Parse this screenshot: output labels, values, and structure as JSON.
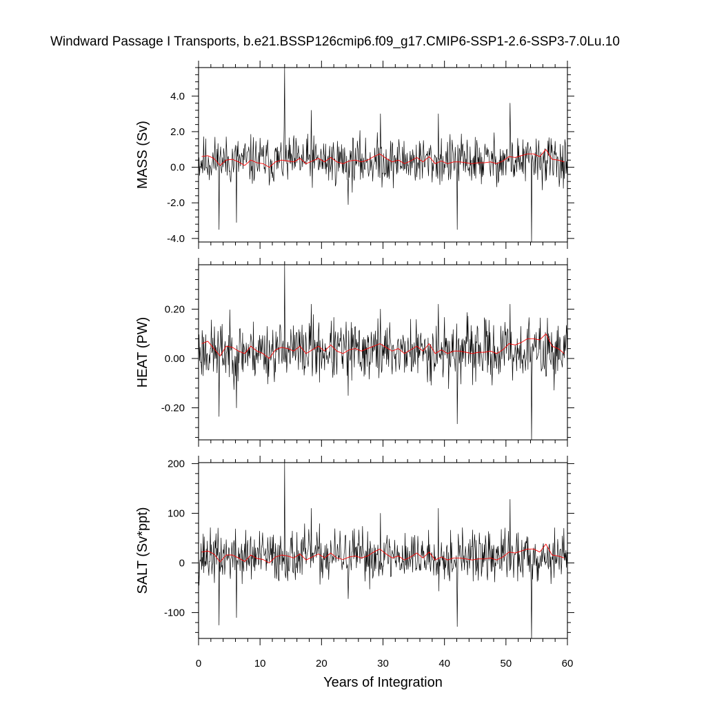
{
  "figure_title": "Windward Passage I Transports, b.e21.BSSP126cmip6.f09_g17.CMIP6-SSP1-2.6-SSP3-7.0Lu.10",
  "colors": {
    "monthly": "#000000",
    "annual": "#ff0000",
    "frame": "#000000"
  },
  "chart_data": [
    {
      "type": "line",
      "name": "mass",
      "xlabel": "",
      "ylabel": "MASS (Sv)",
      "xlim": [
        0,
        60
      ],
      "ylim": [
        -4.2,
        5.6
      ],
      "xticks": [
        0,
        10,
        20,
        30,
        40,
        50,
        60
      ],
      "yticks": [
        -4.0,
        -2.0,
        0.0,
        2.0,
        4.0
      ],
      "ytick_labels": [
        "-4.0",
        "-2.0",
        "0.0",
        "2.0",
        "4.0"
      ],
      "series": [
        {
          "name": "",
          "style": "monthly",
          "mean": 0.35,
          "amp": 0.85,
          "seed": 11,
          "spikes": [
            [
              3.3,
              -3.5
            ],
            [
              6.2,
              -3.1
            ],
            [
              14.0,
              5.6
            ],
            [
              18.3,
              3.2
            ],
            [
              24.3,
              -2.1
            ],
            [
              29.6,
              3.0
            ],
            [
              39.0,
              3.0
            ],
            [
              42.1,
              -3.5
            ],
            [
              50.7,
              3.6
            ],
            [
              54.2,
              -4.2
            ]
          ]
        },
        {
          "name": "",
          "style": "annual",
          "x": [
            0.5,
            1.5,
            2.5,
            3.5,
            4.5,
            5.5,
            6.5,
            7.5,
            8.5,
            9.5,
            10.5,
            11.5,
            12.5,
            13.5,
            14.5,
            15.5,
            16.5,
            17.5,
            18.5,
            19.5,
            20.5,
            21.5,
            22.5,
            23.5,
            24.5,
            25.5,
            26.5,
            27.5,
            28.5,
            29.5,
            30.5,
            31.5,
            32.5,
            33.5,
            34.5,
            35.5,
            36.5,
            37.5,
            38.5,
            39.5,
            40.5,
            41.5,
            42.5,
            43.5,
            44.5,
            45.5,
            46.5,
            47.5,
            48.5,
            49.5,
            50.5,
            51.5,
            52.5,
            53.5,
            54.5,
            55.5,
            56.5,
            57.5,
            58.5,
            59.5
          ],
          "y": [
            0.6,
            0.65,
            0.5,
            0.1,
            0.4,
            0.45,
            0.3,
            0.1,
            0.4,
            0.25,
            0.2,
            0.0,
            0.3,
            0.4,
            0.35,
            0.3,
            0.5,
            0.2,
            0.35,
            0.5,
            0.3,
            0.55,
            0.3,
            0.2,
            0.35,
            0.4,
            0.3,
            0.4,
            0.6,
            0.75,
            0.5,
            0.3,
            0.4,
            0.2,
            0.35,
            0.55,
            0.3,
            0.6,
            0.2,
            0.35,
            0.2,
            0.3,
            0.3,
            0.25,
            0.2,
            0.25,
            0.25,
            0.3,
            0.2,
            0.35,
            0.6,
            0.55,
            0.65,
            0.75,
            0.75,
            0.6,
            1.0,
            0.45,
            0.4,
            0.3
          ]
        }
      ]
    },
    {
      "type": "line",
      "name": "heat",
      "xlabel": "",
      "ylabel": "HEAT (PW)",
      "xlim": [
        0,
        60
      ],
      "ylim": [
        -0.33,
        0.38
      ],
      "xticks": [
        0,
        10,
        20,
        30,
        40,
        50,
        60
      ],
      "yticks": [
        -0.2,
        0.0,
        0.2
      ],
      "ytick_labels": [
        "-0.20",
        "0.00",
        "0.20"
      ],
      "series": [
        {
          "name": "",
          "style": "monthly",
          "mean": 0.03,
          "amp": 0.075,
          "seed": 23,
          "spikes": [
            [
              3.3,
              -0.235
            ],
            [
              6.2,
              -0.2
            ],
            [
              14.0,
              0.38
            ],
            [
              18.3,
              0.22
            ],
            [
              24.3,
              -0.15
            ],
            [
              29.6,
              0.2
            ],
            [
              39.0,
              0.22
            ],
            [
              42.1,
              -0.265
            ],
            [
              50.7,
              0.22
            ],
            [
              54.2,
              -0.33
            ]
          ]
        },
        {
          "name": "",
          "style": "annual",
          "x": [
            0.5,
            1.5,
            2.5,
            3.5,
            4.5,
            5.5,
            6.5,
            7.5,
            8.5,
            9.5,
            10.5,
            11.5,
            12.5,
            13.5,
            14.5,
            15.5,
            16.5,
            17.5,
            18.5,
            19.5,
            20.5,
            21.5,
            22.5,
            23.5,
            24.5,
            25.5,
            26.5,
            27.5,
            28.5,
            29.5,
            30.5,
            31.5,
            32.5,
            33.5,
            34.5,
            35.5,
            36.5,
            37.5,
            38.5,
            39.5,
            40.5,
            41.5,
            42.5,
            43.5,
            44.5,
            45.5,
            46.5,
            47.5,
            48.5,
            49.5,
            50.5,
            51.5,
            52.5,
            53.5,
            54.5,
            55.5,
            56.5,
            57.5,
            58.5,
            59.5
          ],
          "y": [
            0.06,
            0.07,
            0.04,
            0.01,
            0.05,
            0.045,
            0.03,
            0.02,
            0.05,
            0.03,
            0.02,
            0.0,
            0.035,
            0.045,
            0.04,
            0.03,
            0.05,
            0.02,
            0.035,
            0.05,
            0.03,
            0.055,
            0.03,
            0.02,
            0.035,
            0.04,
            0.03,
            0.04,
            0.05,
            0.06,
            0.045,
            0.03,
            0.04,
            0.02,
            0.035,
            0.05,
            0.03,
            0.06,
            0.02,
            0.035,
            0.02,
            0.03,
            0.03,
            0.025,
            0.02,
            0.025,
            0.025,
            0.03,
            0.02,
            0.035,
            0.06,
            0.055,
            0.065,
            0.08,
            0.08,
            0.075,
            0.1,
            0.05,
            0.04,
            0.02
          ]
        }
      ]
    },
    {
      "type": "line",
      "name": "salt",
      "xlabel": "Years of Integration",
      "ylabel": "SALT (Sv*ppt)",
      "xlim": [
        0,
        60
      ],
      "ylim": [
        -152,
        202
      ],
      "xticks": [
        0,
        10,
        20,
        30,
        40,
        50,
        60
      ],
      "xtick_labels": [
        "0",
        "10",
        "20",
        "30",
        "40",
        "50",
        "60"
      ],
      "yticks": [
        -100,
        0,
        100,
        200
      ],
      "ytick_labels": [
        "-100",
        "0",
        "100",
        "200"
      ],
      "series": [
        {
          "name": "",
          "style": "monthly",
          "mean": 13,
          "amp": 32,
          "seed": 37,
          "spikes": [
            [
              3.3,
              -125
            ],
            [
              6.2,
              -110
            ],
            [
              14.0,
              202
            ],
            [
              18.3,
              110
            ],
            [
              24.3,
              -72
            ],
            [
              29.6,
              100
            ],
            [
              39.0,
              110
            ],
            [
              42.1,
              -128
            ],
            [
              50.7,
              128
            ],
            [
              54.2,
              -152
            ]
          ]
        },
        {
          "name": "",
          "style": "annual",
          "x": [
            0.5,
            1.5,
            2.5,
            3.5,
            4.5,
            5.5,
            6.5,
            7.5,
            8.5,
            9.5,
            10.5,
            11.5,
            12.5,
            13.5,
            14.5,
            15.5,
            16.5,
            17.5,
            18.5,
            19.5,
            20.5,
            21.5,
            22.5,
            23.5,
            24.5,
            25.5,
            26.5,
            27.5,
            28.5,
            29.5,
            30.5,
            31.5,
            32.5,
            33.5,
            34.5,
            35.5,
            36.5,
            37.5,
            38.5,
            39.5,
            40.5,
            41.5,
            42.5,
            43.5,
            44.5,
            45.5,
            46.5,
            47.5,
            48.5,
            49.5,
            50.5,
            51.5,
            52.5,
            53.5,
            54.5,
            55.5,
            56.5,
            57.5,
            58.5,
            59.5
          ],
          "y": [
            22,
            24,
            18,
            2,
            16,
            16,
            10,
            3,
            16,
            9,
            7,
            0,
            12,
            16,
            14,
            10,
            18,
            6,
            12,
            18,
            10,
            20,
            10,
            7,
            12,
            14,
            10,
            14,
            22,
            28,
            18,
            10,
            14,
            6,
            12,
            20,
            10,
            22,
            6,
            12,
            6,
            10,
            10,
            8,
            6,
            8,
            8,
            10,
            6,
            12,
            22,
            20,
            24,
            28,
            28,
            22,
            38,
            16,
            14,
            10
          ]
        }
      ]
    }
  ]
}
